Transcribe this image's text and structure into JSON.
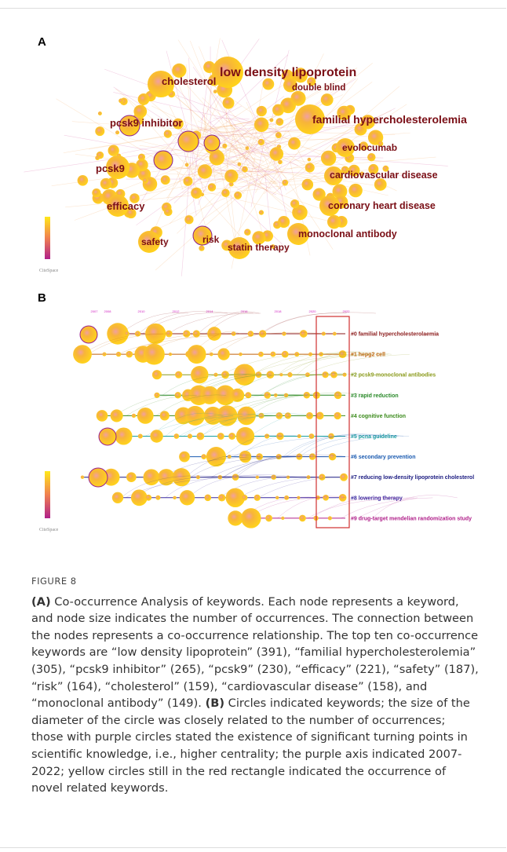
{
  "figure": {
    "panels": [
      {
        "label": "A",
        "keywords": [
          "cholesterol",
          "low density lipoprotein",
          "double blind",
          "pcsk9 inhibitor",
          "familial hypercholesterolemia",
          "evolocumab",
          "pcsk9",
          "cardiovascular disease",
          "efficacy",
          "coronary heart disease",
          "safety",
          "risk",
          "monoclonal antibody",
          "statin therapy"
        ],
        "logo": "CiteSpace"
      },
      {
        "label": "B",
        "years": [
          "2007",
          "2008",
          "2010",
          "2012",
          "2014",
          "2016",
          "2018",
          "2020",
          "2022"
        ],
        "clusters": [
          "#0 familial hypercholesterolaemia",
          "#1 hepg2 cell",
          "#2 pcsk9-monoclonal antibodies",
          "#3 rapid reduction",
          "#4 cognitive function",
          "#5 pcna guideline",
          "#6 secondary prevention",
          "#7 reducing low-density lipoprotein cholesterol",
          "#8 lowering therapy",
          "#9 drug-target mendelian randomization study"
        ],
        "logo": "CiteSpace"
      }
    ],
    "caption": {
      "label": "FIGURE 8",
      "a_label": "(A)",
      "a_text": " Co-occurrence Analysis of keywords. Each node represents a keyword, and node size indicates the number of occurrences. The connection between the nodes represents a co-occurrence relationship. The top ten co-occurrence keywords are “low density lipoprotein” (391), “familial hypercholesterolemia” (305), “pcsk9 inhibitor” (265), “pcsk9” (230), “efficacy” (221), “safety” (187), “risk” (164), “cholesterol” (159), “cardiovascular disease” (158), and “monoclonal antibody” (149). ",
      "b_label": "(B)",
      "b_text": " Circles indicated keywords; the size of the diameter of the circle was closely related to the number of occurrences; those with purple circles stated the existence of significant turning points in scientific knowledge, i.e., higher centrality; the purple axis indicated 2007-2022; yellow circles still in the red rectangle indicated the occurrence of novel related keywords."
    }
  }
}
